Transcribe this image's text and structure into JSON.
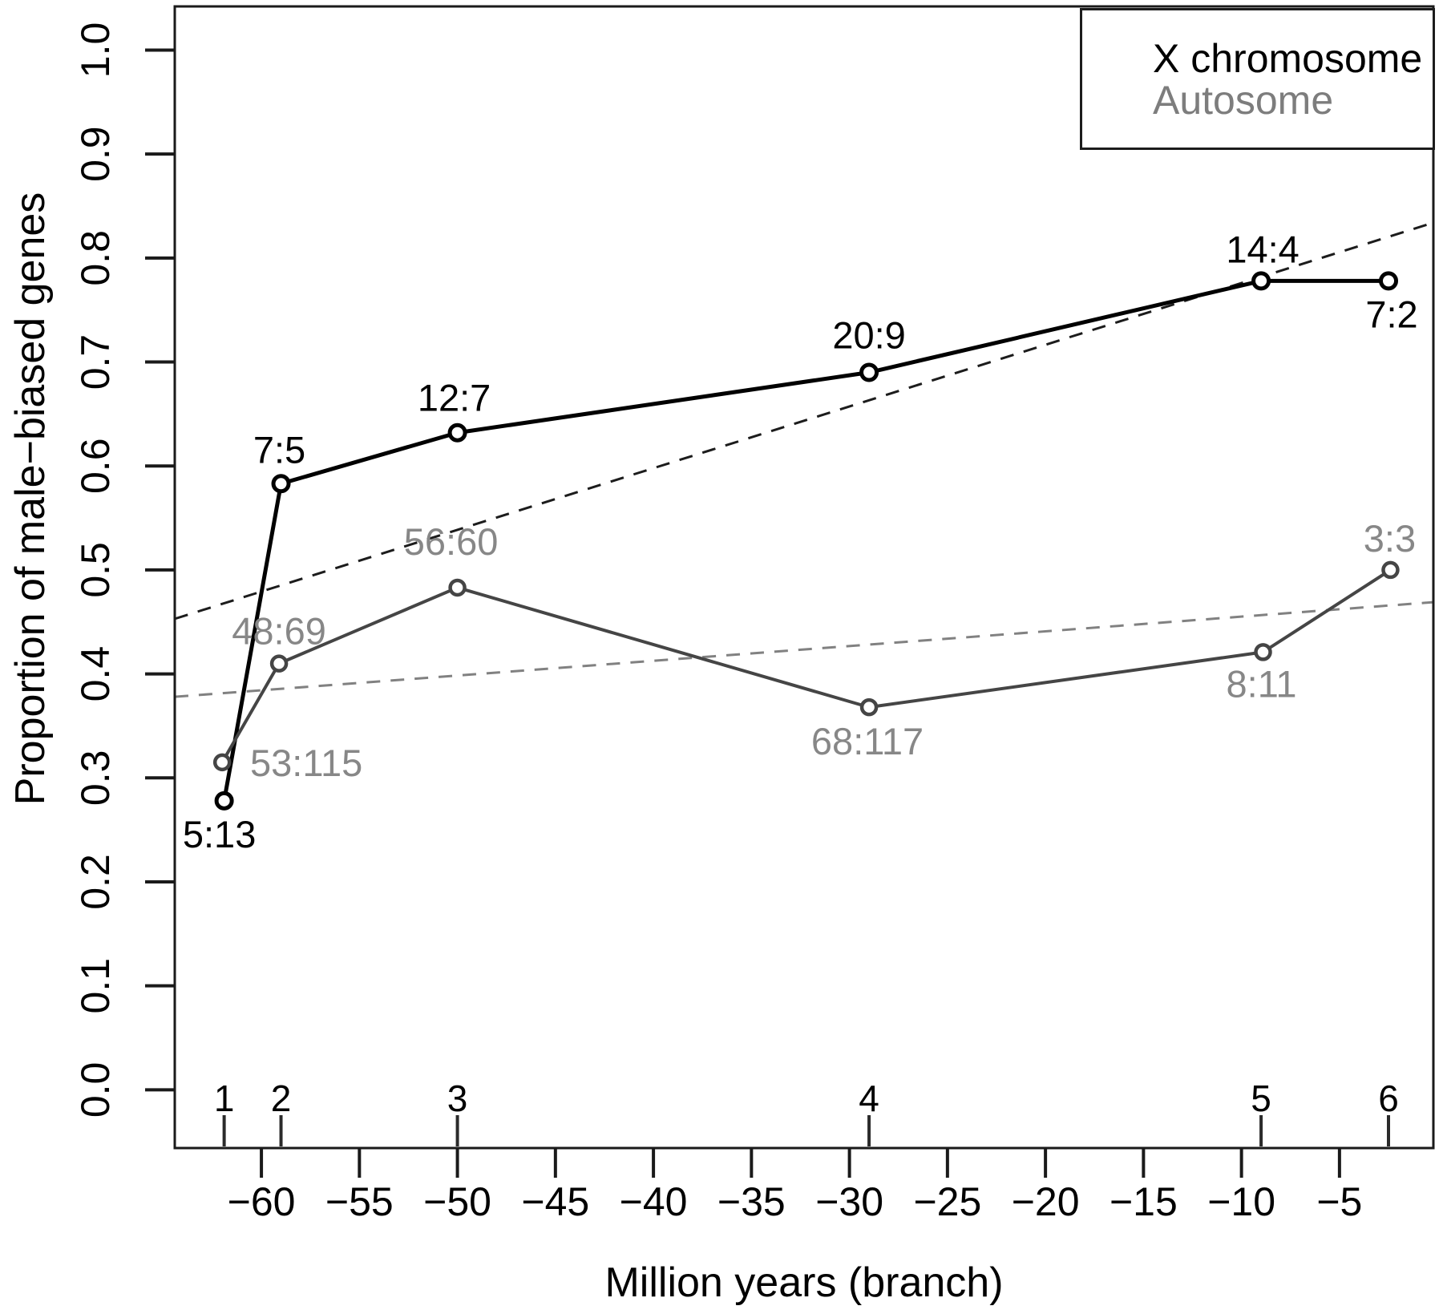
{
  "figure": {
    "description": "Line chart of proportion of male-biased genes over evolutionary time for X chromosome vs autosomes, with male:female biased gene count ratios labelling each point and dashed linear trend lines"
  },
  "chart_data": {
    "type": "line",
    "title": "",
    "xlabel": "Million years (branch)",
    "ylabel": "Proportion of male−biased genes",
    "xlim": [
      -64.42,
      -0.21
    ],
    "ylim": [
      -0.056,
      1.042
    ],
    "grid": "off",
    "x_ticks": [
      {
        "value": -60,
        "label": "−60"
      },
      {
        "value": -55,
        "label": "−55"
      },
      {
        "value": -50,
        "label": "−50"
      },
      {
        "value": -45,
        "label": "−45"
      },
      {
        "value": -40,
        "label": "−40"
      },
      {
        "value": -35,
        "label": "−35"
      },
      {
        "value": -30,
        "label": "−30"
      },
      {
        "value": -25,
        "label": "−25"
      },
      {
        "value": -20,
        "label": "−20"
      },
      {
        "value": -15,
        "label": "−15"
      },
      {
        "value": -10,
        "label": "−10"
      },
      {
        "value": -5,
        "label": "−5"
      }
    ],
    "y_ticks": [
      {
        "value": 0.0,
        "label": "0.0"
      },
      {
        "value": 0.1,
        "label": "0.1"
      },
      {
        "value": 0.2,
        "label": "0.2"
      },
      {
        "value": 0.3,
        "label": "0.3"
      },
      {
        "value": 0.4,
        "label": "0.4"
      },
      {
        "value": 0.5,
        "label": "0.5"
      },
      {
        "value": 0.6,
        "label": "0.6"
      },
      {
        "value": 0.7,
        "label": "0.7"
      },
      {
        "value": 0.8,
        "label": "0.8"
      },
      {
        "value": 0.9,
        "label": "0.9"
      },
      {
        "value": 1.0,
        "label": "1.0"
      }
    ],
    "branch_ticks": [
      {
        "branch": "1",
        "myr": -61.9
      },
      {
        "branch": "2",
        "myr": -59.0
      },
      {
        "branch": "3",
        "myr": -50.0
      },
      {
        "branch": "4",
        "myr": -29.0
      },
      {
        "branch": "5",
        "myr": -9.0
      },
      {
        "branch": "6",
        "myr": -2.5
      }
    ],
    "series": [
      {
        "name": "X chromosome",
        "color": "#000000",
        "label_color": "#000000",
        "line_width": 5,
        "points": [
          {
            "branch": "1",
            "myr": -61.9,
            "ratio": "5:13",
            "value": 0.278
          },
          {
            "branch": "2",
            "myr": -59.0,
            "ratio": "7:5",
            "value": 0.583
          },
          {
            "branch": "3",
            "myr": -50.0,
            "ratio": "12:7",
            "value": 0.632
          },
          {
            "branch": "4",
            "myr": -29.0,
            "ratio": "20:9",
            "value": 0.69
          },
          {
            "branch": "5",
            "myr": -9.0,
            "ratio": "14:4",
            "value": 0.778
          },
          {
            "branch": "6",
            "myr": -2.5,
            "ratio": "7:2",
            "value": 0.778
          }
        ]
      },
      {
        "name": "Autosome",
        "color": "#454545",
        "label_color": "#878787",
        "line_width": 4,
        "points": [
          {
            "branch": "1",
            "myr": -62.0,
            "ratio": "53:115",
            "value": 0.315
          },
          {
            "branch": "2",
            "myr": -59.1,
            "ratio": "48:69",
            "value": 0.41
          },
          {
            "branch": "3",
            "myr": -50.0,
            "ratio": "56:60",
            "value": 0.483
          },
          {
            "branch": "4",
            "myr": -29.0,
            "ratio": "68:117",
            "value": 0.368
          },
          {
            "branch": "5",
            "myr": -8.9,
            "ratio": "8:11",
            "value": 0.421
          },
          {
            "branch": "6",
            "myr": -2.4,
            "ratio": "3:3",
            "value": 0.5
          }
        ]
      }
    ],
    "trend_lines": [
      {
        "series": "X chromosome",
        "style": "dashed",
        "color": "#1c1c1c",
        "start": {
          "myr": -64.42,
          "value": 0.453
        },
        "end": {
          "myr": -0.21,
          "value": 0.834
        }
      },
      {
        "series": "Autosome",
        "style": "dashed",
        "color": "#818181",
        "start": {
          "myr": -64.42,
          "value": 0.378
        },
        "end": {
          "myr": -0.21,
          "value": 0.469
        }
      }
    ],
    "legend": {
      "position": "top-right",
      "entries": [
        {
          "label": "X chromosome",
          "color": "#000000"
        },
        {
          "label": "Autosome",
          "color": "#7d7d7d"
        }
      ]
    }
  }
}
